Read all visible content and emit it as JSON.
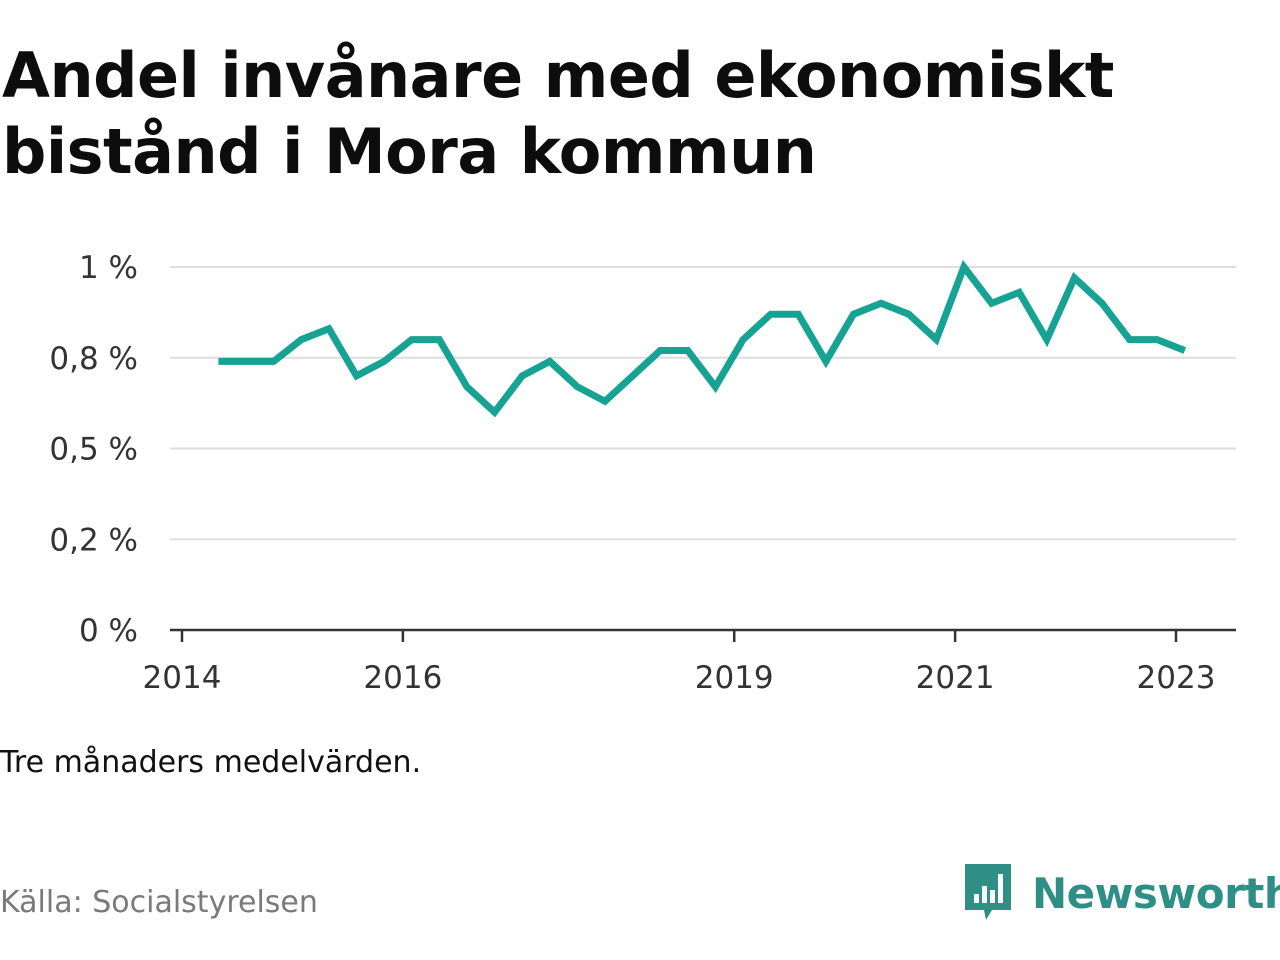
{
  "title": "Andel invånare med ekonomiskt bistånd i Mora kommun",
  "note": "Tre månaders medelvärden.",
  "source": "Källa: Socialstyrelsen",
  "brand": {
    "name": "Newsworthy",
    "icon": "newsworthy-logo-icon",
    "color": "#2f8f86"
  },
  "colors": {
    "line": "#16a394",
    "grid": "#dddddd",
    "axis": "#333333"
  },
  "chart_data": {
    "type": "line",
    "title": "Andel invånare med ekonomiskt bistånd i Mora kommun",
    "xlabel": "",
    "ylabel": "",
    "x_range": [
      2014.0,
      2023.75
    ],
    "ylim": [
      0,
      1
    ],
    "y_ticks": [
      {
        "value": 0,
        "label": "0 %"
      },
      {
        "value": 0.25,
        "label": "0,2 %"
      },
      {
        "value": 0.5,
        "label": "0,5 %"
      },
      {
        "value": 0.75,
        "label": "0,8 %"
      },
      {
        "value": 1,
        "label": "1 %"
      }
    ],
    "x_ticks": [
      {
        "value": 2014,
        "label": "2014"
      },
      {
        "value": 2016,
        "label": "2016"
      },
      {
        "value": 2019,
        "label": "2019"
      },
      {
        "value": 2021,
        "label": "2021"
      },
      {
        "value": 2023,
        "label": "2023"
      }
    ],
    "grid": true,
    "legend": "none",
    "series": [
      {
        "x": [
          2014.33,
          2014.58,
          2014.83,
          2015.08,
          2015.33,
          2015.58,
          2015.83,
          2016.08,
          2016.33,
          2016.58,
          2016.83,
          2017.08,
          2017.33,
          2017.58,
          2017.83,
          2018.08,
          2018.33,
          2018.58,
          2018.83,
          2019.08,
          2019.33,
          2019.58,
          2019.83,
          2020.08,
          2020.33,
          2020.58,
          2020.83,
          2021.08,
          2021.33,
          2021.58,
          2021.83,
          2022.08,
          2022.33,
          2022.58,
          2022.83,
          2023.08
        ],
        "y": [
          0.74,
          0.74,
          0.74,
          0.8,
          0.83,
          0.7,
          0.74,
          0.8,
          0.8,
          0.67,
          0.6,
          0.7,
          0.74,
          0.67,
          0.63,
          0.7,
          0.77,
          0.77,
          0.67,
          0.8,
          0.87,
          0.87,
          0.74,
          0.87,
          0.9,
          0.87,
          0.8,
          1.0,
          0.9,
          0.93,
          0.8,
          0.97,
          0.9,
          0.8,
          0.8,
          0.77
        ]
      }
    ]
  }
}
